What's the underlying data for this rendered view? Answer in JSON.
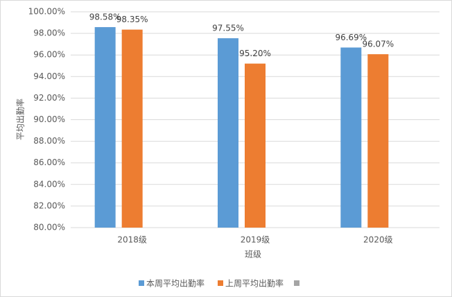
{
  "chart_data": {
    "type": "bar",
    "x_label": "班级",
    "y_label": "平均出勤率",
    "categories": [
      "2018级",
      "2019级",
      "2020级"
    ],
    "series": [
      {
        "name": "本周平均出勤率",
        "color": "#5b9bd5",
        "values": [
          98.58,
          97.55,
          96.69
        ],
        "value_labels": [
          "98.58%",
          "97.55%",
          "96.69%"
        ]
      },
      {
        "name": "上周平均出勤率",
        "color": "#ed7d31",
        "values": [
          98.35,
          95.2,
          96.07
        ],
        "value_labels": [
          "98.35%",
          "95.20%",
          "96.07%"
        ]
      }
    ],
    "ylim": [
      80,
      100
    ],
    "yticks": [
      {
        "value": 80,
        "label": "80.00%"
      },
      {
        "value": 82,
        "label": "82.00%"
      },
      {
        "value": 84,
        "label": "84.00%"
      },
      {
        "value": 86,
        "label": "86.00%"
      },
      {
        "value": 88,
        "label": "88.00%"
      },
      {
        "value": 90,
        "label": "90.00%"
      },
      {
        "value": 92,
        "label": "92.00%"
      },
      {
        "value": 94,
        "label": "94.00%"
      },
      {
        "value": 96,
        "label": "96.00%"
      },
      {
        "value": 98,
        "label": "98.00%"
      },
      {
        "value": 100,
        "label": "100.00%"
      }
    ],
    "grid": true
  }
}
